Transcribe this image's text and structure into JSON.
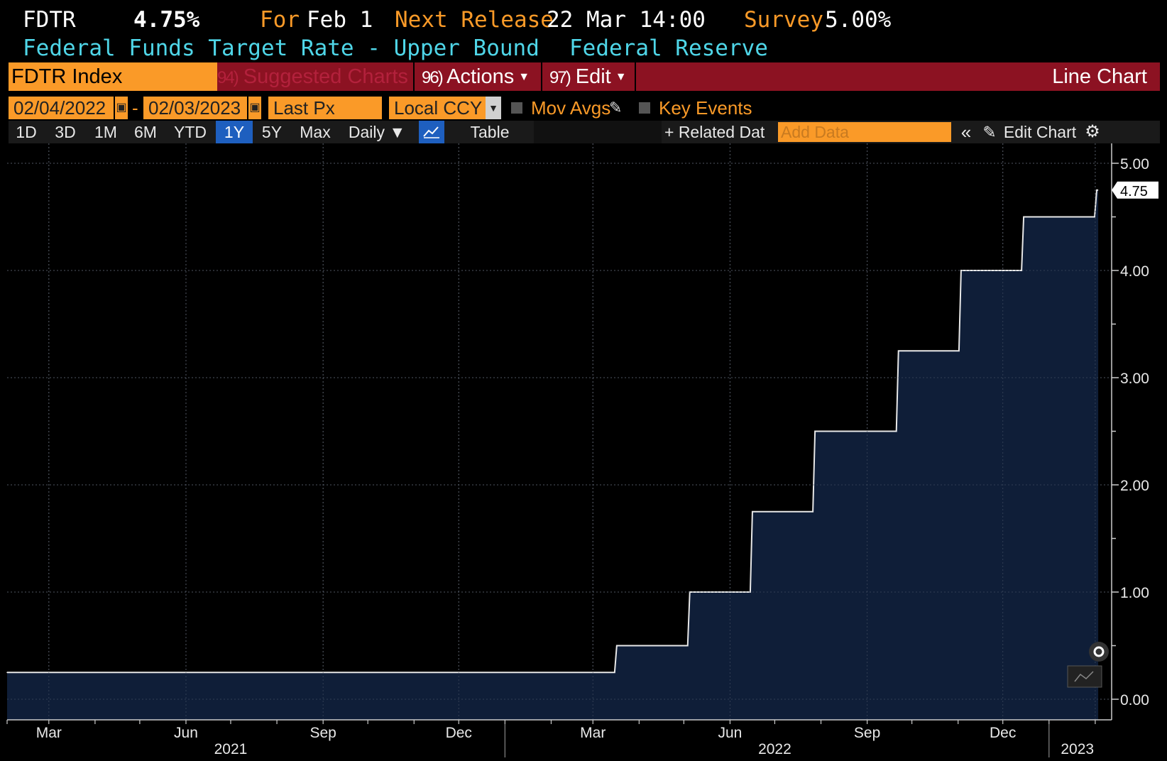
{
  "header": {
    "ticker": "FDTR",
    "last_value": "4.75%",
    "for_label": "For",
    "for_date": "Feb 1",
    "next_release_label": "Next Release",
    "next_release": "22 Mar 14:00",
    "survey_label": "Survey",
    "survey_value": "5.00%",
    "description": "Federal Funds Target Rate - Upper Bound",
    "source": "Federal Reserve"
  },
  "function_bar": {
    "security": "FDTR Index",
    "suggested_num": "94)",
    "suggested_label": "Suggested Charts",
    "actions_num": "96)",
    "actions_label": "Actions",
    "edit_num": "97)",
    "edit_label": "Edit",
    "chart_type": "Line Chart"
  },
  "controls": {
    "start_date": "02/04/2022",
    "date_sep": "-",
    "end_date": "02/03/2023",
    "price_field": "Last Px",
    "currency": "Local CCY",
    "mov_avgs": "Mov Avgs",
    "key_events": "Key Events"
  },
  "range_bar": {
    "ranges": [
      "1D",
      "3D",
      "1M",
      "6M",
      "YTD",
      "1Y",
      "5Y",
      "Max"
    ],
    "active": "1Y",
    "frequency": "Daily ▼",
    "table": "Table",
    "related_data": "+ Related Dat",
    "add_data_placeholder": "Add Data",
    "collapse": "«",
    "edit_chart": "Edit Chart"
  },
  "colors": {
    "orange": "#fa9a28",
    "cyan": "#4fd6e8",
    "red_bar": "#8c1222",
    "area_fill": "#0f1e38",
    "active_range": "#1e5fbf"
  },
  "chart_data": {
    "type": "area",
    "title": "",
    "ylim": [
      -0.2,
      5.1
    ],
    "yticks": [
      "0.00",
      "1.00",
      "2.00",
      "3.00",
      "4.00",
      "5.00"
    ],
    "last_label": "4.75",
    "x_month_labels": [
      "Mar",
      "Jun",
      "Sep",
      "Dec",
      "Mar",
      "Jun",
      "Sep",
      "Dec"
    ],
    "x_year_labels": [
      "2021",
      "2022",
      "2023"
    ],
    "x": [
      "2021-02-01",
      "2022-03-17",
      "2022-05-05",
      "2022-06-16",
      "2022-07-28",
      "2022-09-22",
      "2022-11-03",
      "2022-12-15",
      "2023-02-02"
    ],
    "values": [
      0.25,
      0.5,
      1.0,
      1.75,
      2.5,
      3.25,
      4.0,
      4.5,
      4.75
    ],
    "end_date": "2023-02-03"
  }
}
